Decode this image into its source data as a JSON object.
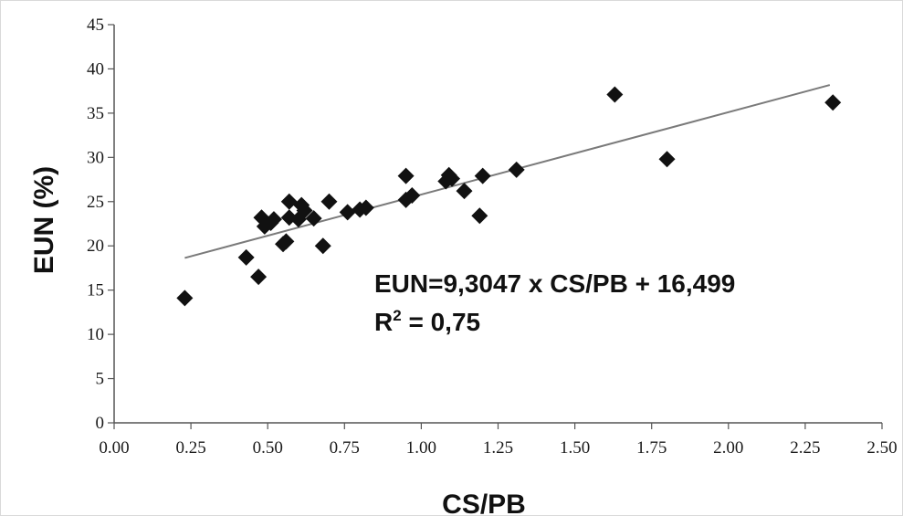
{
  "chart_data": {
    "type": "scatter",
    "xlabel": "CS/PB",
    "ylabel": "EUN (%)",
    "xlim": [
      0,
      2.5
    ],
    "ylim": [
      0,
      45
    ],
    "x_ticks": [
      "0.00",
      "0.25",
      "0.50",
      "0.75",
      "1.00",
      "1.25",
      "1.50",
      "1.75",
      "2.00",
      "2.25",
      "2.50"
    ],
    "y_ticks": [
      "0",
      "5",
      "10",
      "15",
      "20",
      "25",
      "30",
      "35",
      "40",
      "45"
    ],
    "grid": false,
    "marker": "diamond",
    "marker_color": "#111111",
    "trendline_color": "#7a7a7a",
    "trendline": {
      "slope": 9.3047,
      "intercept": 16.499,
      "x_range": [
        0.23,
        2.33
      ]
    },
    "annotations": {
      "equation": "EUN=9,3047 x CS/PB + 16,499",
      "r2_prefix": "R",
      "r2_sup": "2",
      "r2_rest": " = 0,75"
    },
    "points": [
      {
        "x": 0.23,
        "y": 14.1
      },
      {
        "x": 0.43,
        "y": 18.7
      },
      {
        "x": 0.47,
        "y": 16.5
      },
      {
        "x": 0.48,
        "y": 23.2
      },
      {
        "x": 0.49,
        "y": 22.2
      },
      {
        "x": 0.51,
        "y": 22.6
      },
      {
        "x": 0.52,
        "y": 23.0
      },
      {
        "x": 0.55,
        "y": 20.2
      },
      {
        "x": 0.56,
        "y": 20.5
      },
      {
        "x": 0.57,
        "y": 23.2
      },
      {
        "x": 0.57,
        "y": 25.0
      },
      {
        "x": 0.6,
        "y": 23.0
      },
      {
        "x": 0.61,
        "y": 24.6
      },
      {
        "x": 0.62,
        "y": 24.0
      },
      {
        "x": 0.65,
        "y": 23.1
      },
      {
        "x": 0.68,
        "y": 20.0
      },
      {
        "x": 0.7,
        "y": 25.0
      },
      {
        "x": 0.76,
        "y": 23.8
      },
      {
        "x": 0.8,
        "y": 24.1
      },
      {
        "x": 0.82,
        "y": 24.3
      },
      {
        "x": 0.95,
        "y": 25.2
      },
      {
        "x": 0.95,
        "y": 27.9
      },
      {
        "x": 0.97,
        "y": 25.7
      },
      {
        "x": 1.08,
        "y": 27.3
      },
      {
        "x": 1.09,
        "y": 28.0
      },
      {
        "x": 1.1,
        "y": 27.6
      },
      {
        "x": 1.14,
        "y": 26.2
      },
      {
        "x": 1.19,
        "y": 23.4
      },
      {
        "x": 1.2,
        "y": 27.9
      },
      {
        "x": 1.31,
        "y": 28.6
      },
      {
        "x": 1.63,
        "y": 37.1
      },
      {
        "x": 1.8,
        "y": 29.8
      },
      {
        "x": 2.34,
        "y": 36.2
      }
    ]
  }
}
